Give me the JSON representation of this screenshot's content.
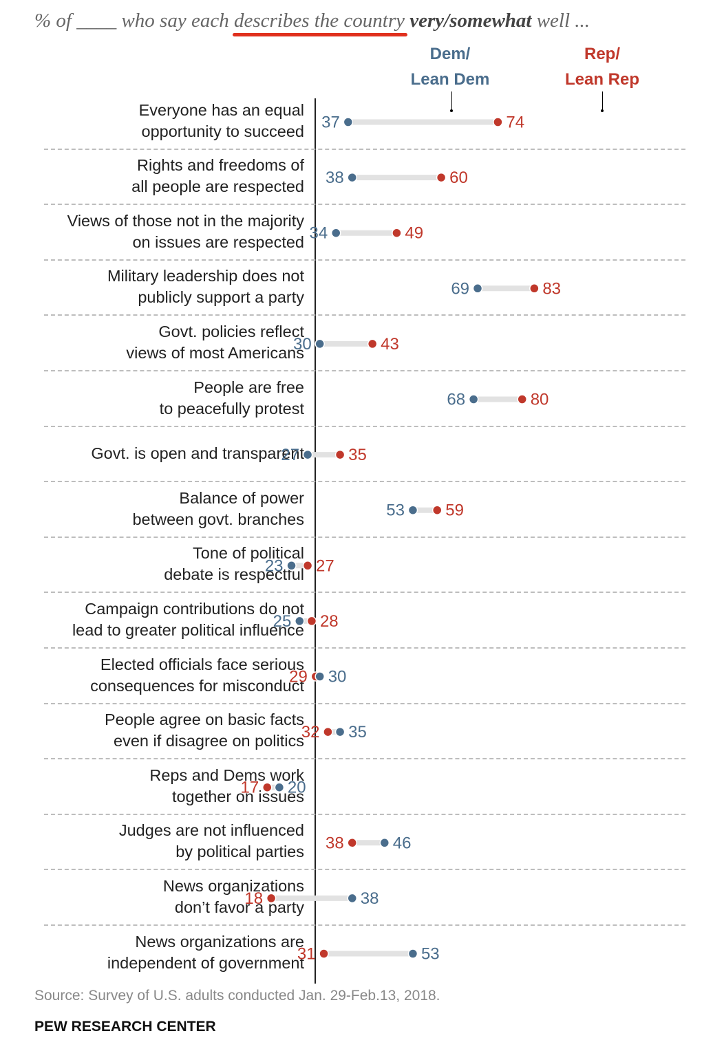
{
  "header": {
    "subtitle_prefix": "% of ____ who say each ",
    "subtitle_highlight": "describes the country",
    "subtitle_bold": "very/somewhat",
    "subtitle_suffix": " well ...",
    "legend_dem_line1": "Dem/",
    "legend_dem_line2": "Lean Dem",
    "legend_rep_line1": "Rep/",
    "legend_rep_line2": "Lean Rep"
  },
  "colors": {
    "dem": "#4a6d8c",
    "rep": "#c0382b",
    "connector": "#e2e2e2",
    "highlight": "#e0301e"
  },
  "chart_data": {
    "type": "dot",
    "series": [
      {
        "name": "Dem/Lean Dem",
        "values": [
          37,
          38,
          34,
          69,
          30,
          68,
          27,
          53,
          23,
          25,
          30,
          35,
          20,
          46,
          38,
          53
        ]
      },
      {
        "name": "Rep/Lean Rep",
        "values": [
          74,
          60,
          49,
          83,
          43,
          80,
          35,
          59,
          27,
          28,
          29,
          32,
          17,
          38,
          18,
          31
        ]
      }
    ],
    "categories": [
      "Everyone has an equal opportunity to succeed",
      "Rights and freedoms of all people are respected",
      "Views of those not in the majority on issues are respected",
      "Military leadership does not publicly support a party",
      "Govt. policies reflect views of most Americans",
      "People are free to peacefully protest",
      "Govt. is open and transparent",
      "Balance of power between govt. branches",
      "Tone of political debate is respectful",
      "Campaign contributions do not lead to greater political influence",
      "Elected officials face serious consequences for misconduct",
      "People agree on basic facts even if disagree on politics",
      "Reps and Dems work together on issues",
      "Judges are not influenced by political parties",
      "News organizations don’t favor a party",
      "News organizations are independent of government"
    ],
    "rows": [
      {
        "label_lines": [
          "Everyone has an equal",
          "opportunity to succeed"
        ],
        "dem": 37,
        "rep": 74
      },
      {
        "label_lines": [
          "Rights and freedoms of",
          "all people are respected"
        ],
        "dem": 38,
        "rep": 60
      },
      {
        "label_lines": [
          "Views of those not in the majority",
          "on issues are respected"
        ],
        "dem": 34,
        "rep": 49
      },
      {
        "label_lines": [
          "Military leadership does not",
          "publicly support a party"
        ],
        "dem": 69,
        "rep": 83
      },
      {
        "label_lines": [
          "Govt. policies reflect",
          "views of most Americans"
        ],
        "dem": 30,
        "rep": 43
      },
      {
        "label_lines": [
          "People are free",
          "to peacefully protest"
        ],
        "dem": 68,
        "rep": 80
      },
      {
        "label_lines": [
          "Govt. is open and transparent"
        ],
        "dem": 27,
        "rep": 35
      },
      {
        "label_lines": [
          "Balance of power",
          "between govt. branches"
        ],
        "dem": 53,
        "rep": 59
      },
      {
        "label_lines": [
          "Tone of political",
          "debate is respectful"
        ],
        "dem": 23,
        "rep": 27
      },
      {
        "label_lines": [
          "Campaign contributions do not",
          "lead to greater political influence"
        ],
        "dem": 25,
        "rep": 28
      },
      {
        "label_lines": [
          "Elected officials face serious",
          "consequences for misconduct"
        ],
        "dem": 30,
        "rep": 29
      },
      {
        "label_lines": [
          "People agree on basic facts",
          "even if disagree on politics"
        ],
        "dem": 35,
        "rep": 32
      },
      {
        "label_lines": [
          "Reps and Dems work",
          "together on issues"
        ],
        "dem": 20,
        "rep": 17
      },
      {
        "label_lines": [
          "Judges are not influenced",
          "by political parties"
        ],
        "dem": 46,
        "rep": 38
      },
      {
        "label_lines": [
          "News organizations",
          "don’t favor a party"
        ],
        "dem": 38,
        "rep": 18
      },
      {
        "label_lines": [
          "News organizations are",
          "independent of government"
        ],
        "dem": 53,
        "rep": 31
      }
    ]
  },
  "footer": {
    "source": "Source: Survey of U.S. adults conducted Jan. 29-Feb.13, 2018.",
    "brand": "PEW RESEARCH CENTER"
  }
}
